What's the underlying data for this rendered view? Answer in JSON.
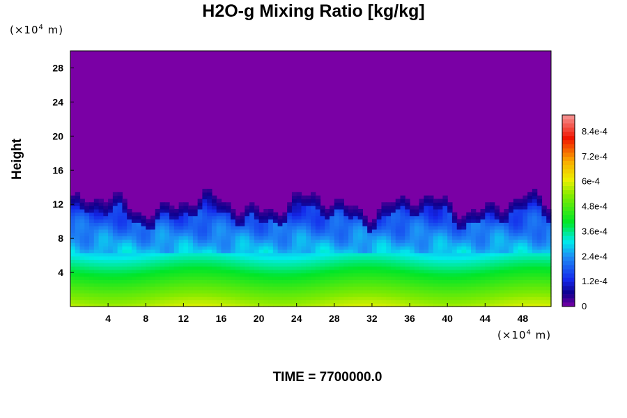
{
  "chart_data": {
    "type": "heatmap",
    "title": "H2O-g Mixing Ratio [kg/kg]",
    "ylabel": "Height",
    "x_unit_prefix": "(×10",
    "x_unit_exp": "4",
    "x_unit_suffix": " m)",
    "y_unit_prefix": "(×10",
    "y_unit_exp": "4",
    "y_unit_suffix": " m)",
    "xlim": [
      0,
      51
    ],
    "ylim": [
      0,
      30
    ],
    "x_ticks": [
      "4",
      "8",
      "12",
      "16",
      "20",
      "24",
      "28",
      "32",
      "36",
      "40",
      "44",
      "48"
    ],
    "y_ticks": [
      "4",
      "8",
      "12",
      "16",
      "20",
      "24",
      "28"
    ],
    "colorbar": {
      "min": 0,
      "max": 0.00092,
      "tick_labels": [
        "0",
        "1.2e-4",
        "2.4e-4",
        "3.6e-4",
        "4.8e-4",
        "6e-4",
        "7.2e-4",
        "8.4e-4"
      ],
      "tick_values": [
        0,
        0.00012,
        0.00024,
        0.00036,
        0.00048,
        0.0006,
        0.00072,
        0.00084
      ]
    },
    "field_summary": {
      "dry_layer_value": 0,
      "moist_top_height_approx": 12,
      "near_surface_value_approx": 0.00058,
      "mid_layer_value_at_height_5_approx": 0.00028
    },
    "footer": "TIME = 7700000.0"
  },
  "colors": {
    "background": "#ffffff",
    "dry": "#7a00a5"
  }
}
